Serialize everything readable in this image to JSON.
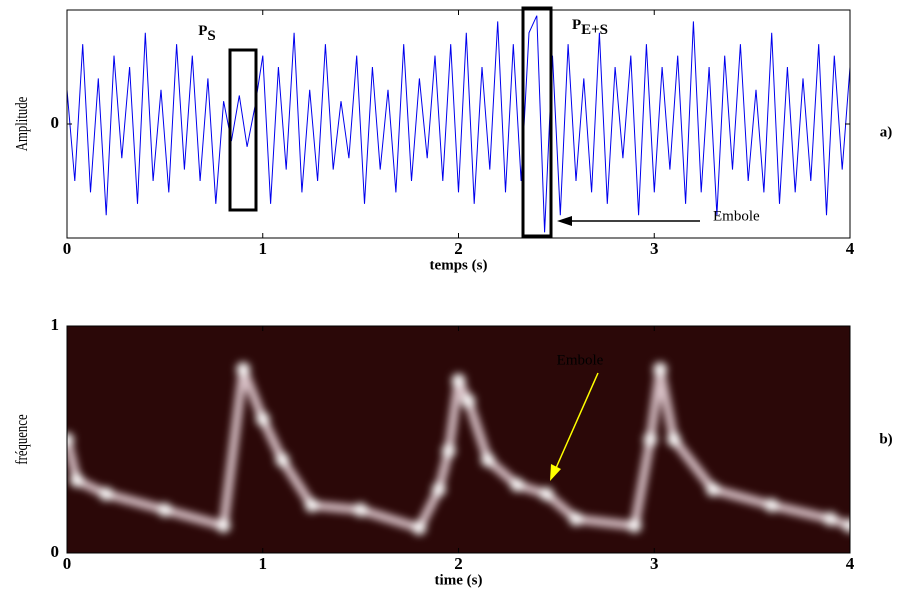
{
  "chart_data": [
    {
      "type": "line",
      "x_label": "temps (s)",
      "y_label": "Amplitude",
      "panel_label": "a)",
      "x": [
        0,
        0.04,
        0.08,
        0.12,
        0.16,
        0.2,
        0.24,
        0.28,
        0.32,
        0.36,
        0.4,
        0.44,
        0.48,
        0.52,
        0.56,
        0.6,
        0.64,
        0.68,
        0.72,
        0.76,
        0.8,
        0.84,
        0.88,
        0.92,
        0.96,
        1,
        1.04,
        1.08,
        1.12,
        1.16,
        1.2,
        1.24,
        1.28,
        1.32,
        1.36,
        1.4,
        1.44,
        1.48,
        1.52,
        1.56,
        1.6,
        1.64,
        1.68,
        1.72,
        1.76,
        1.8,
        1.84,
        1.88,
        1.92,
        1.96,
        2,
        2.04,
        2.08,
        2.12,
        2.16,
        2.2,
        2.24,
        2.28,
        2.32,
        2.36,
        2.4,
        2.44,
        2.48,
        2.52,
        2.56,
        2.6,
        2.64,
        2.68,
        2.72,
        2.76,
        2.8,
        2.84,
        2.88,
        2.92,
        2.96,
        3,
        3.04,
        3.08,
        3.12,
        3.16,
        3.2,
        3.24,
        3.28,
        3.32,
        3.36,
        3.4,
        3.44,
        3.48,
        3.52,
        3.56,
        3.6,
        3.64,
        3.68,
        3.72,
        3.76,
        3.8,
        3.84,
        3.88,
        3.92,
        3.96,
        4
      ],
      "series": [
        {
          "color": "#0000ee",
          "values": [
            0.3,
            -0.5,
            0.7,
            -0.6,
            0.4,
            -0.8,
            0.6,
            -0.3,
            0.5,
            -0.7,
            0.8,
            -0.5,
            0.3,
            -0.6,
            0.7,
            -0.4,
            0.6,
            -0.5,
            0.4,
            -0.7,
            0.2,
            -0.15,
            0.25,
            -0.2,
            0.15,
            0.6,
            -0.7,
            0.5,
            -0.4,
            0.8,
            -0.6,
            0.3,
            -0.5,
            0.7,
            -0.4,
            0.2,
            -0.3,
            0.6,
            -0.7,
            0.5,
            -0.4,
            0.3,
            -0.6,
            0.7,
            -0.5,
            0.4,
            -0.3,
            0.6,
            -0.5,
            0.7,
            -0.6,
            0.8,
            -0.7,
            0.5,
            -0.4,
            0.9,
            -0.6,
            0.7,
            -0.5,
            0.8,
            0.95,
            -0.95,
            0.6,
            -0.8,
            0.7,
            -0.5,
            0.4,
            -0.6,
            0.8,
            -0.7,
            0.5,
            -0.3,
            0.6,
            -0.8,
            0.7,
            -0.6,
            0.5,
            -0.4,
            0.6,
            -0.7,
            0.9,
            -0.6,
            0.5,
            -0.8,
            0.6,
            -0.4,
            0.7,
            -0.5,
            0.3,
            -0.6,
            0.8,
            -0.7,
            0.5,
            -0.6,
            0.4,
            -0.5,
            0.7,
            -0.8,
            0.6,
            -0.4,
            0.5
          ]
        }
      ],
      "xlim": [
        0,
        4
      ],
      "xticks": [
        0,
        1,
        2,
        3,
        4
      ],
      "ylim": [
        -1,
        1
      ],
      "yticks": [
        0
      ],
      "boxes": [
        {
          "label": "P",
          "subscript": "S"
        },
        {
          "label": "P",
          "subscript": "E+S"
        }
      ],
      "annotation": "Embole"
    },
    {
      "type": "spectrogram",
      "x_label": "time (s)",
      "y_label": "fréquence",
      "panel_label": "b)",
      "x": [
        0,
        0.05,
        0.2,
        0.5,
        0.8,
        0.9,
        1,
        1.1,
        1.25,
        1.5,
        1.8,
        1.9,
        1.95,
        2,
        2.05,
        2.15,
        2.3,
        2.45,
        2.6,
        2.9,
        2.98,
        3.03,
        3.1,
        3.3,
        3.6,
        3.9,
        4
      ],
      "values": [
        0.5,
        0.32,
        0.26,
        0.19,
        0.12,
        0.81,
        0.59,
        0.41,
        0.21,
        0.19,
        0.11,
        0.28,
        0.45,
        0.76,
        0.67,
        0.41,
        0.3,
        0.26,
        0.15,
        0.12,
        0.5,
        0.81,
        0.5,
        0.28,
        0.21,
        0.15,
        0.12
      ],
      "color": "#f6dfe6",
      "background": "#2b0808",
      "xlim": [
        0,
        4
      ],
      "xticks": [
        0,
        1,
        2,
        3,
        4
      ],
      "ylim": [
        0,
        1
      ],
      "yticks": [
        0,
        1
      ],
      "annotation": "Embole",
      "annotation_color": "#ffff00"
    }
  ]
}
